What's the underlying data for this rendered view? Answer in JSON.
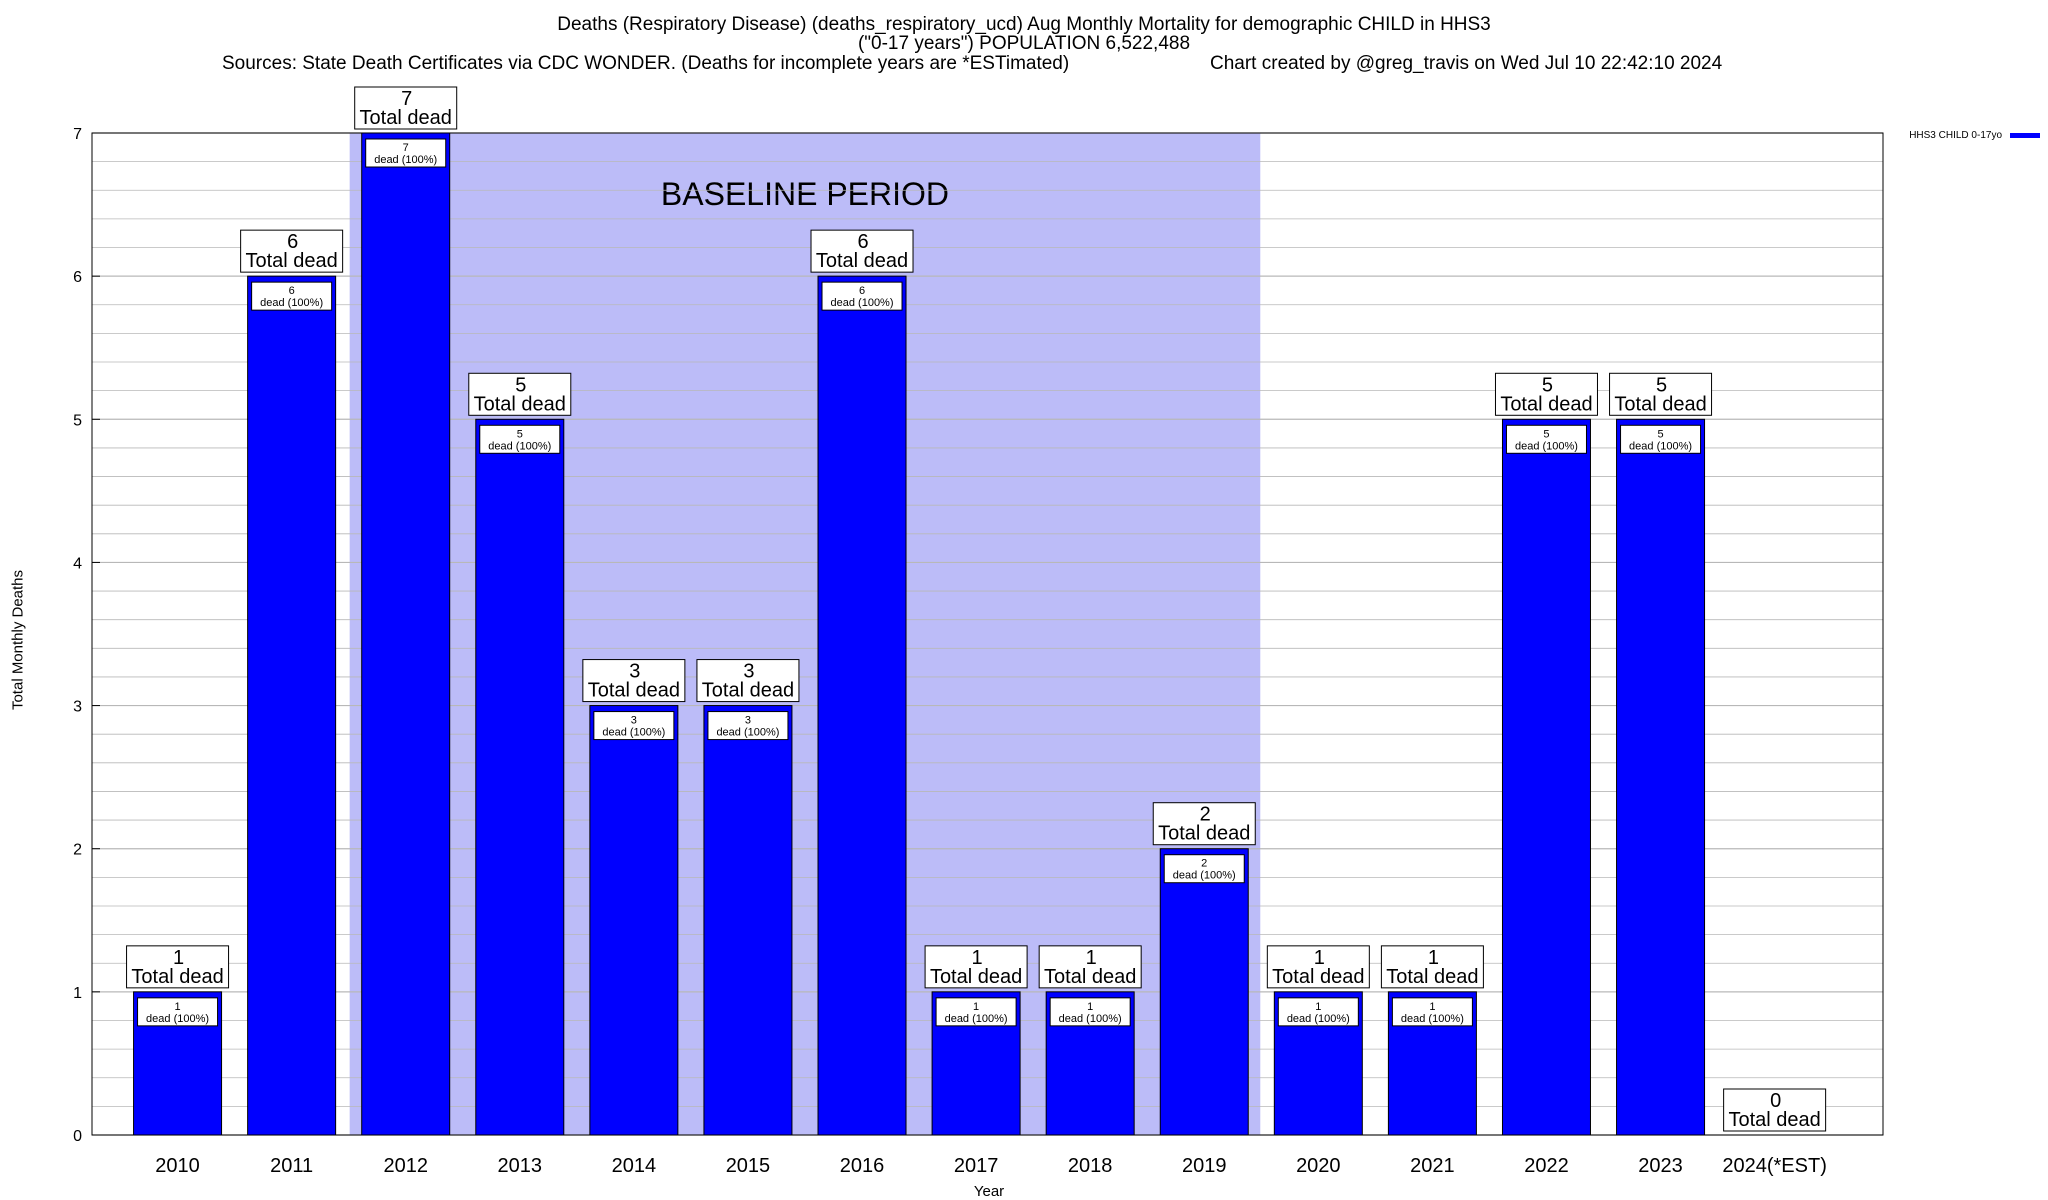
{
  "title": {
    "line1": "Deaths (Respiratory Disease) (deaths_respiratory_ucd) Aug Monthly Mortality for demographic CHILD in HHS3",
    "line2": "(\"0-17 years\") POPULATION 6,522,488",
    "sources": "Sources: State Death Certificates via CDC WONDER. (Deaths for incomplete years are *ESTimated)",
    "credit": "Chart created by @greg_travis on Wed Jul 10 22:42:10 2024"
  },
  "colors": {
    "bar": "#0000ff",
    "baseline": "#bcbcf8",
    "grid": "#b8b8b8"
  },
  "chart_data": {
    "type": "bar",
    "title": "Deaths (Respiratory Disease) (deaths_respiratory_ucd) Aug Monthly Mortality for demographic CHILD in HHS3",
    "xlabel": "Year",
    "ylabel": "Total Monthly Deaths",
    "ylim": [
      0,
      7
    ],
    "yticks": [
      "0",
      "1",
      "2",
      "3",
      "4",
      "5",
      "6",
      "7"
    ],
    "grid": true,
    "legend_position": "top-right",
    "categories": [
      "2010",
      "2011",
      "2012",
      "2013",
      "2014",
      "2015",
      "2016",
      "2017",
      "2018",
      "2019",
      "2020",
      "2021",
      "2022",
      "2023",
      "2024(*EST)"
    ],
    "series": [
      {
        "name": "HHS3 CHILD 0-17yo",
        "values": [
          1,
          6,
          7,
          5,
          3,
          3,
          6,
          1,
          1,
          2,
          1,
          1,
          5,
          5,
          0
        ]
      }
    ],
    "total_label": "Total dead",
    "inner_label": "dead (100%)",
    "annotations": {
      "baseline_label": "BASELINE PERIOD",
      "baseline_years": [
        "2012",
        "2019"
      ]
    }
  }
}
